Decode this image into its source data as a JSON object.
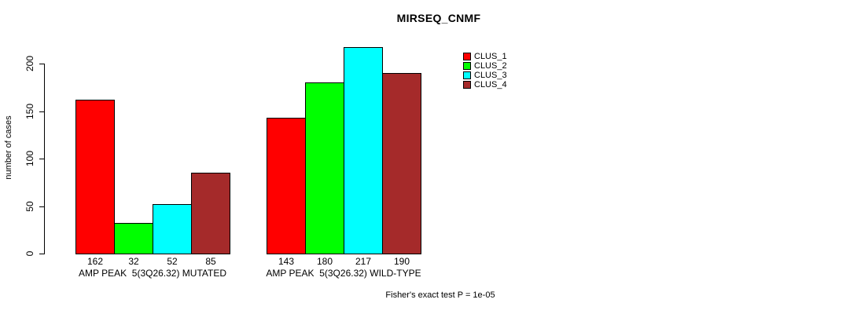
{
  "chart_data": {
    "type": "bar",
    "title": "MIRSEQ_CNMF",
    "ylabel": "number of cases",
    "xlabel": "",
    "ylim": [
      0,
      200
    ],
    "yticks": [
      0,
      50,
      100,
      150,
      200
    ],
    "grid": false,
    "legend_position": "top-right",
    "categories": [
      "AMP PEAK  5(3Q26.32) MUTATED",
      "AMP PEAK  5(3Q26.32) WILD-TYPE"
    ],
    "series": [
      {
        "name": "CLUS_1",
        "color": "#FF0000",
        "values": [
          162,
          143
        ]
      },
      {
        "name": "CLUS_2",
        "color": "#00FF00",
        "values": [
          32,
          180
        ]
      },
      {
        "name": "CLUS_3",
        "color": "#00FFFF",
        "values": [
          52,
          217
        ]
      },
      {
        "name": "CLUS_4",
        "color": "#A52A2A",
        "values": [
          85,
          190
        ]
      }
    ],
    "bar_value_labels": true,
    "annotation": "Fisher's exact test P = 1e-05"
  }
}
